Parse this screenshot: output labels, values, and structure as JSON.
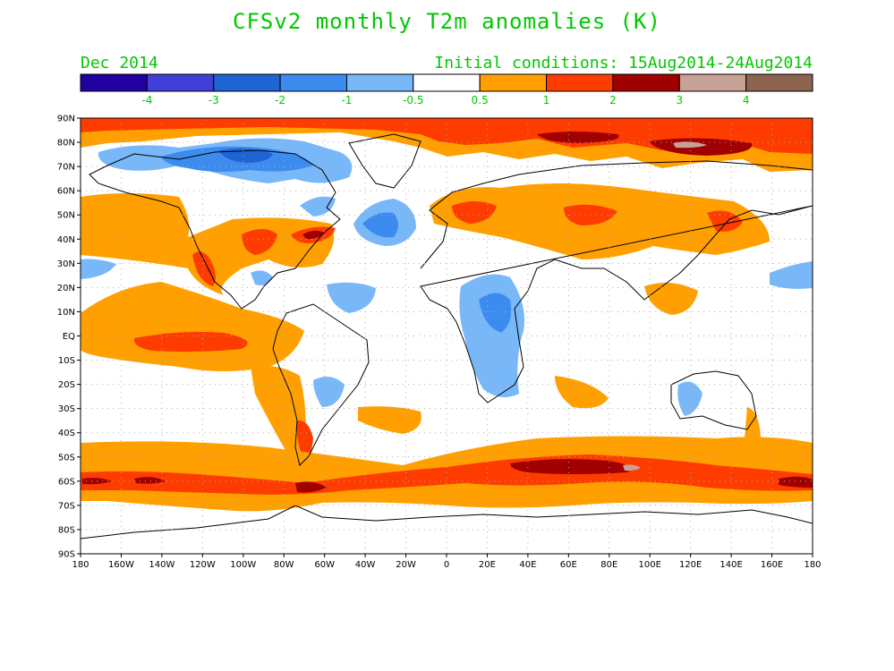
{
  "title": "CFSv2 monthly T2m anomalies (K)",
  "valid_month": "Dec 2014",
  "initial_conditions": "Initial conditions: 15Aug2014-24Aug2014",
  "colorbar": {
    "colors": [
      "#2000a0",
      "#4040d8",
      "#1e64d2",
      "#3c8cf0",
      "#78b8f8",
      "#ffffff",
      "#ffa000",
      "#ff3c00",
      "#a00000",
      "#c8a096",
      "#8c6450"
    ],
    "labels": [
      "-4",
      "-3",
      "-2",
      "-1",
      "-0.5",
      "0.5",
      "1",
      "2",
      "3",
      "4"
    ]
  },
  "axes": {
    "lat_labels": [
      "90N",
      "80N",
      "70N",
      "60N",
      "50N",
      "40N",
      "30N",
      "20N",
      "10N",
      "EQ",
      "10S",
      "20S",
      "30S",
      "40S",
      "50S",
      "60S",
      "70S",
      "80S",
      "90S"
    ],
    "lon_labels": [
      "180",
      "160W",
      "140W",
      "120W",
      "100W",
      "80W",
      "60W",
      "40W",
      "20W",
      "0",
      "20E",
      "40E",
      "60E",
      "80E",
      "100E",
      "120E",
      "140E",
      "160E",
      "180"
    ]
  },
  "colors": {
    "frame": "#000000",
    "grid": "#aaaaaa",
    "text": "#00c800"
  }
}
